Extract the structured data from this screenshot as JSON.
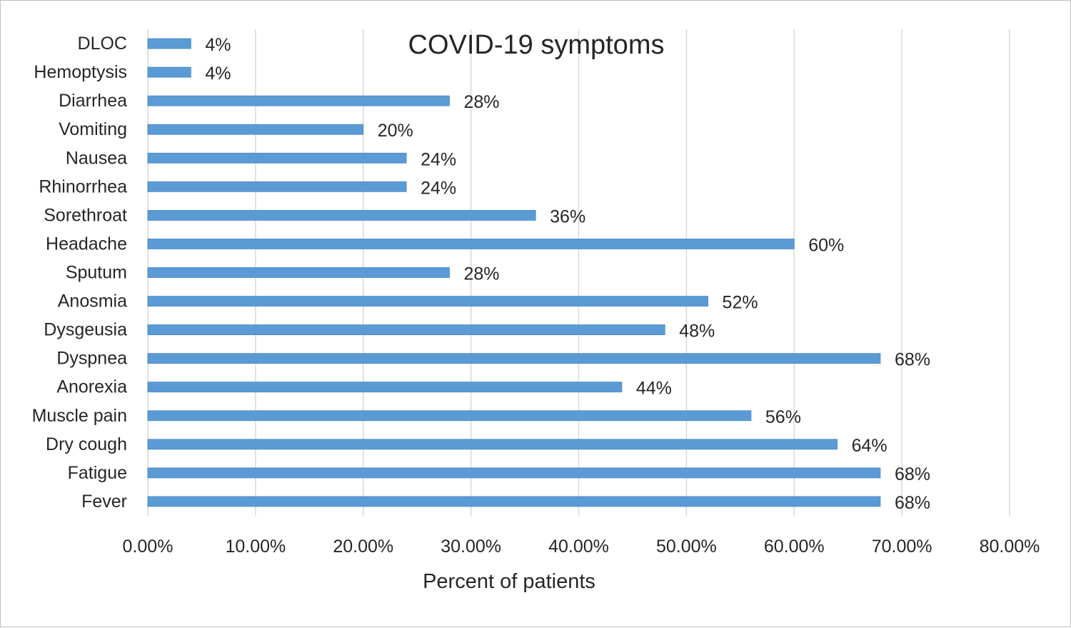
{
  "chart_data": {
    "type": "bar",
    "orientation": "horizontal",
    "title": "COVID-19 symptoms",
    "xlabel": "Percent of patients",
    "ylabel": "",
    "xlim": [
      0,
      80
    ],
    "xticks": [
      "0.00%",
      "10.00%",
      "20.00%",
      "30.00%",
      "40.00%",
      "50.00%",
      "60.00%",
      "70.00%",
      "80.00%"
    ],
    "grid": "vertical",
    "legend": "none",
    "bar_color": "#5b9bd5",
    "categories": [
      "DLOC",
      "Hemoptysis",
      "Diarrhea",
      "Vomiting",
      "Nausea",
      "Rhinorrhea",
      "Sorethroat",
      "Headache",
      "Sputum",
      "Anosmia",
      "Dysgeusia",
      "Dyspnea",
      "Anorexia",
      "Muscle pain",
      "Dry cough",
      "Fatigue",
      "Fever"
    ],
    "values": [
      4,
      4,
      28,
      20,
      24,
      24,
      36,
      60,
      28,
      52,
      48,
      68,
      44,
      56,
      64,
      68,
      68
    ],
    "data_labels": [
      "4%",
      "4%",
      "28%",
      "20%",
      "24%",
      "24%",
      "36%",
      "60%",
      "28%",
      "52%",
      "48%",
      "68%",
      "44%",
      "56%",
      "64%",
      "68%",
      "68%"
    ]
  }
}
